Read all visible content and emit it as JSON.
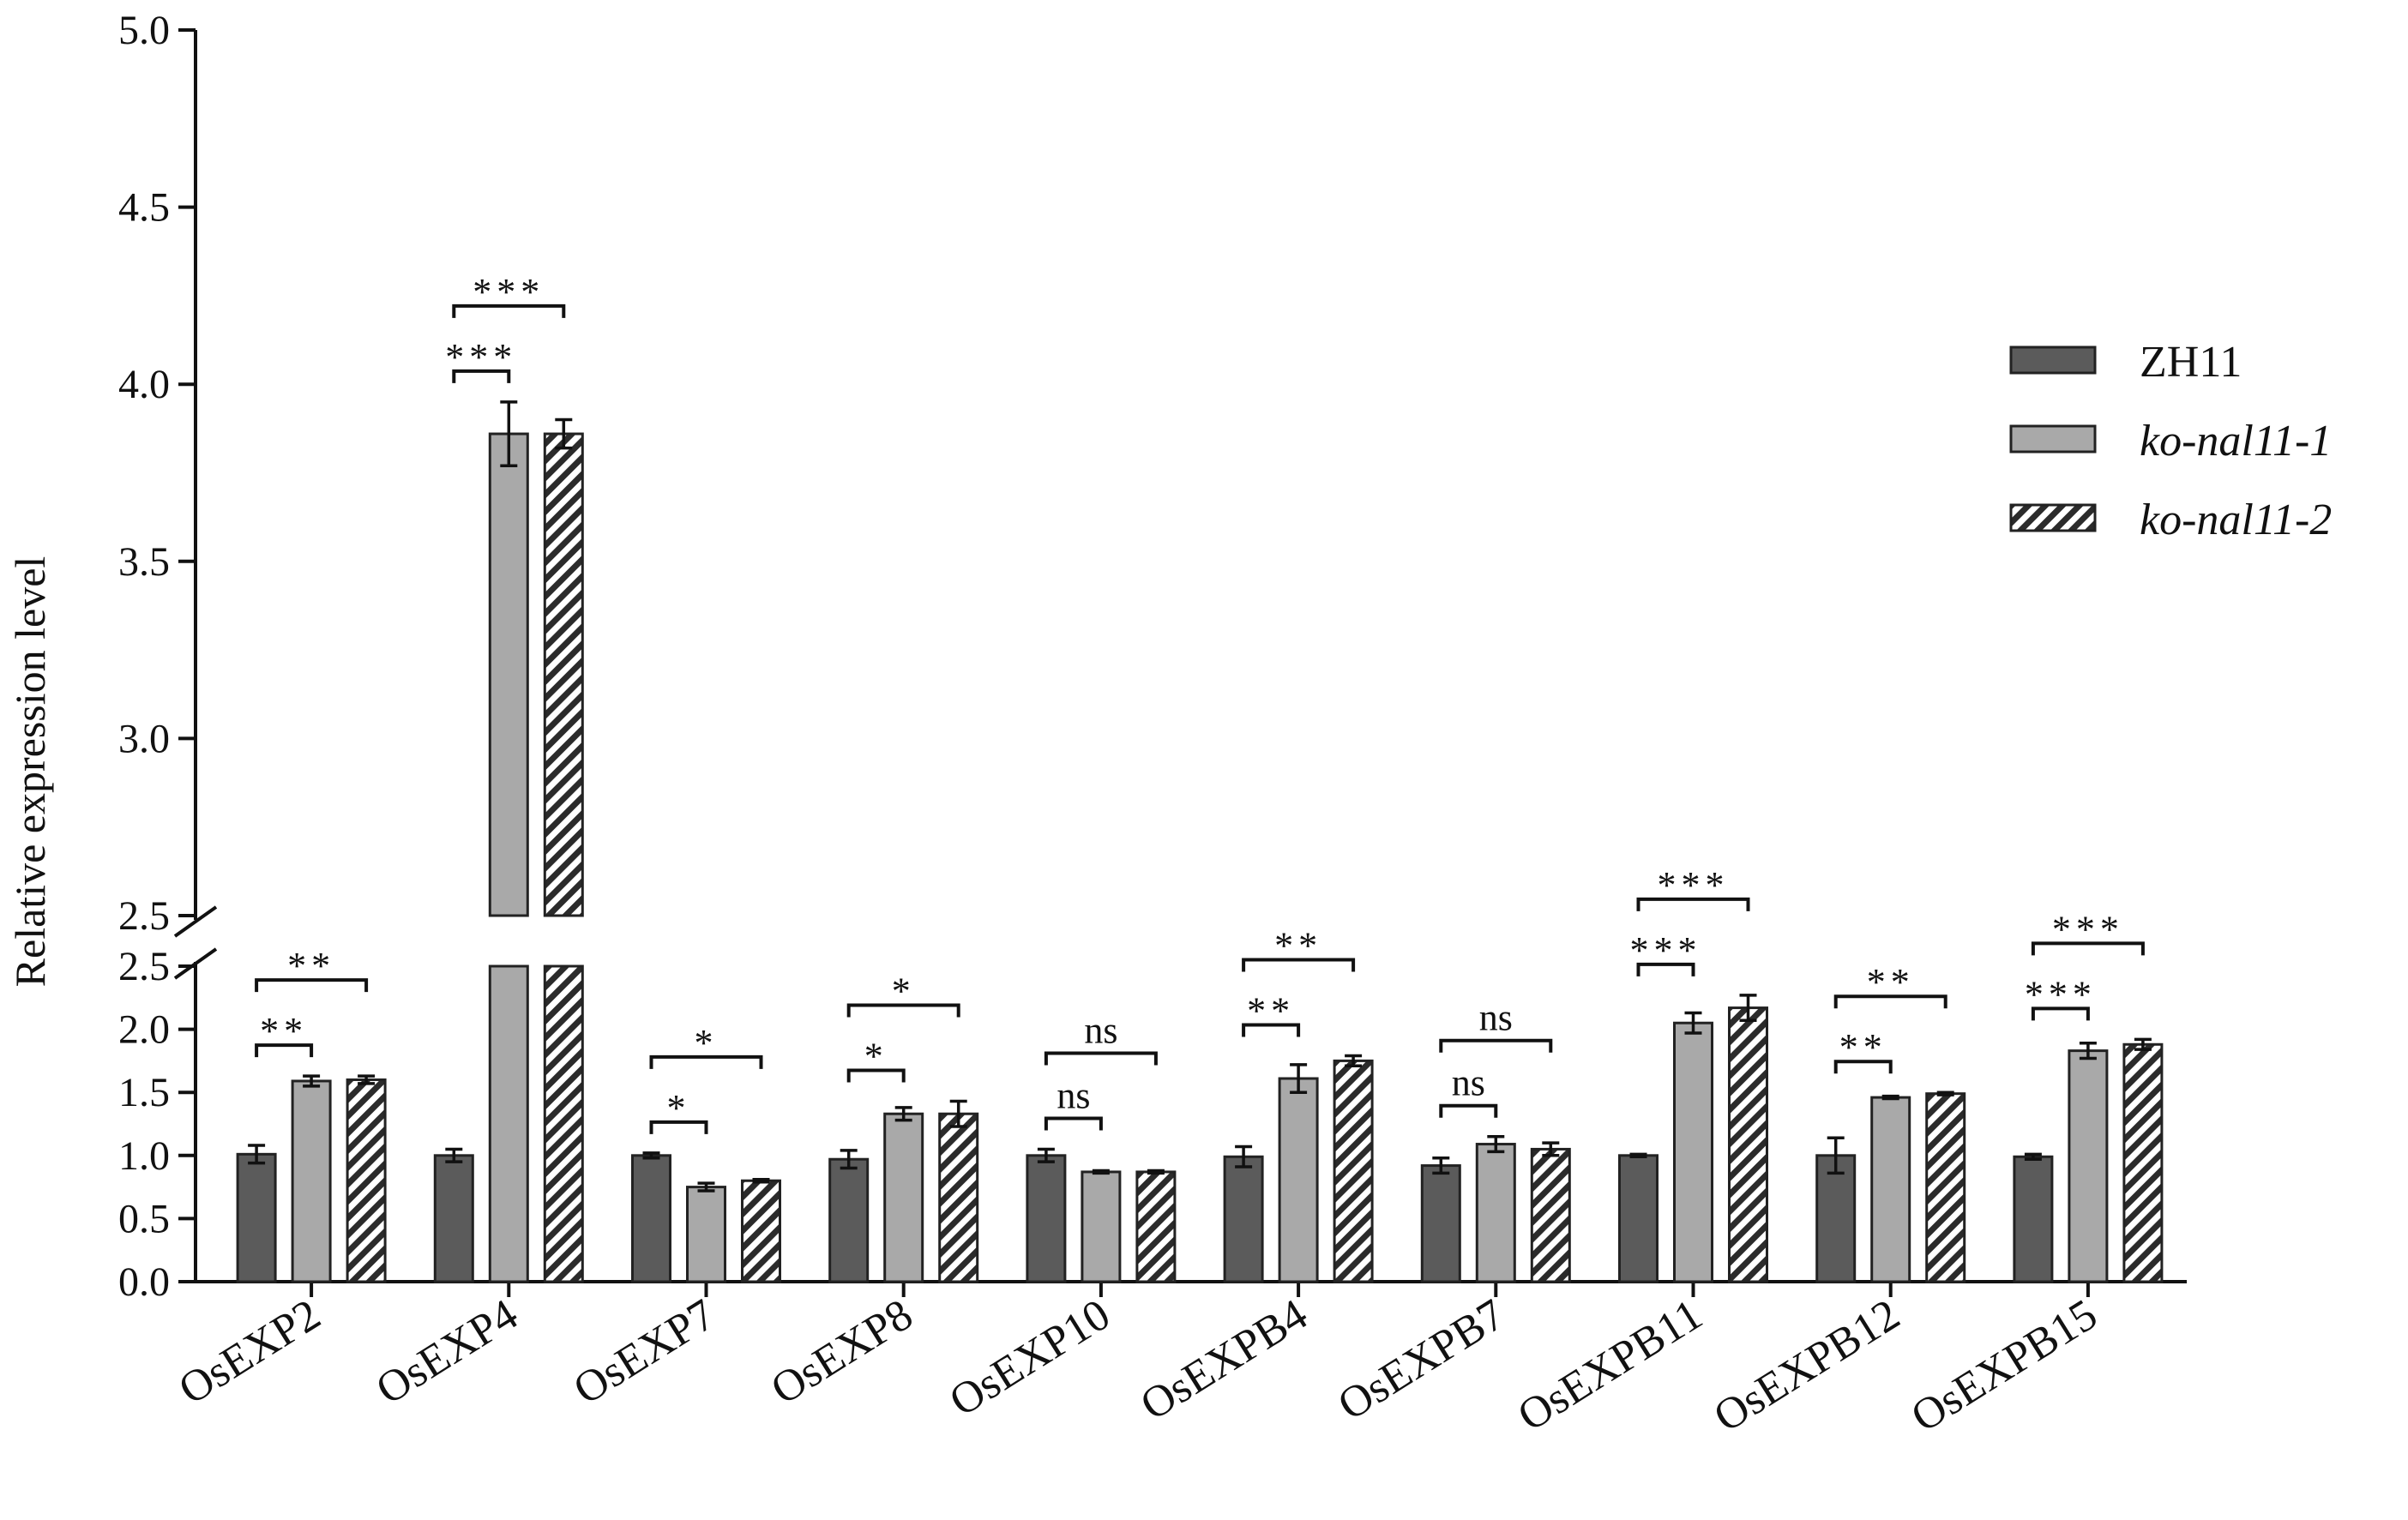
{
  "chart_data": {
    "type": "bar",
    "title": "",
    "xlabel": "",
    "ylabel": "Relative expression level",
    "ylim": [
      0,
      5.0
    ],
    "y_axis_break": {
      "lower_range": [
        0,
        2.5
      ],
      "upper_range": [
        2.5,
        5.0
      ]
    },
    "y_ticks_lower": [
      "0.0",
      "0.5",
      "1.0",
      "1.5",
      "2.0",
      "2.5"
    ],
    "y_ticks_upper": [
      "2.5",
      "3.0",
      "3.5",
      "4.0",
      "4.5",
      "5.0"
    ],
    "grid": false,
    "legend_position": "right",
    "categories": [
      "OsEXP2",
      "OsEXP4",
      "OsEXP7",
      "OsEXP8",
      "OsEXP10",
      "OsEXPB4",
      "OsEXPB7",
      "OsEXPB11",
      "OsEXPB12",
      "OsEXPB15"
    ],
    "series": [
      {
        "name": "ZH11",
        "color": "#5b5b5b",
        "pattern": "solid",
        "values": [
          1.01,
          1.0,
          1.0,
          0.97,
          1.0,
          0.99,
          0.92,
          1.0,
          1.0,
          0.99
        ],
        "errors": [
          0.07,
          0.05,
          0.02,
          0.07,
          0.05,
          0.08,
          0.06,
          0.01,
          0.14,
          0.02
        ]
      },
      {
        "name": "ko-nal11-1",
        "color": "#a9a9a9",
        "pattern": "solid",
        "values": [
          1.59,
          3.86,
          0.75,
          1.33,
          0.87,
          1.61,
          1.09,
          2.05,
          1.46,
          1.83
        ],
        "errors": [
          0.04,
          0.09,
          0.03,
          0.05,
          0.01,
          0.11,
          0.06,
          0.08,
          0.01,
          0.06
        ]
      },
      {
        "name": "ko-nal11-2",
        "color": "#8a8a8a",
        "pattern": "hatched",
        "values": [
          1.6,
          3.86,
          0.8,
          1.33,
          0.87,
          1.75,
          1.05,
          2.17,
          1.49,
          1.88
        ],
        "errors": [
          0.03,
          0.04,
          0.01,
          0.1,
          0.01,
          0.04,
          0.05,
          0.1,
          0.01,
          0.04
        ]
      }
    ],
    "significance": [
      {
        "category": "OsEXP2",
        "pair": "ko-nal11-1",
        "label": "**"
      },
      {
        "category": "OsEXP2",
        "pair": "ko-nal11-2",
        "label": "**"
      },
      {
        "category": "OsEXP4",
        "pair": "ko-nal11-1",
        "label": "***"
      },
      {
        "category": "OsEXP4",
        "pair": "ko-nal11-2",
        "label": "***"
      },
      {
        "category": "OsEXP7",
        "pair": "ko-nal11-1",
        "label": "*"
      },
      {
        "category": "OsEXP7",
        "pair": "ko-nal11-2",
        "label": "*"
      },
      {
        "category": "OsEXP8",
        "pair": "ko-nal11-1",
        "label": "*"
      },
      {
        "category": "OsEXP8",
        "pair": "ko-nal11-2",
        "label": "*"
      },
      {
        "category": "OsEXP10",
        "pair": "ko-nal11-1",
        "label": "ns"
      },
      {
        "category": "OsEXP10",
        "pair": "ko-nal11-2",
        "label": "ns"
      },
      {
        "category": "OsEXPB4",
        "pair": "ko-nal11-1",
        "label": "**"
      },
      {
        "category": "OsEXPB4",
        "pair": "ko-nal11-2",
        "label": "**"
      },
      {
        "category": "OsEXPB7",
        "pair": "ko-nal11-1",
        "label": "ns"
      },
      {
        "category": "OsEXPB7",
        "pair": "ko-nal11-2",
        "label": "ns"
      },
      {
        "category": "OsEXPB11",
        "pair": "ko-nal11-1",
        "label": "***"
      },
      {
        "category": "OsEXPB11",
        "pair": "ko-nal11-2",
        "label": "***"
      },
      {
        "category": "OsEXPB12",
        "pair": "ko-nal11-1",
        "label": "**"
      },
      {
        "category": "OsEXPB12",
        "pair": "ko-nal11-2",
        "label": "**"
      },
      {
        "category": "OsEXPB15",
        "pair": "ko-nal11-1",
        "label": "***"
      },
      {
        "category": "OsEXPB15",
        "pair": "ko-nal11-2",
        "label": "***"
      }
    ]
  }
}
